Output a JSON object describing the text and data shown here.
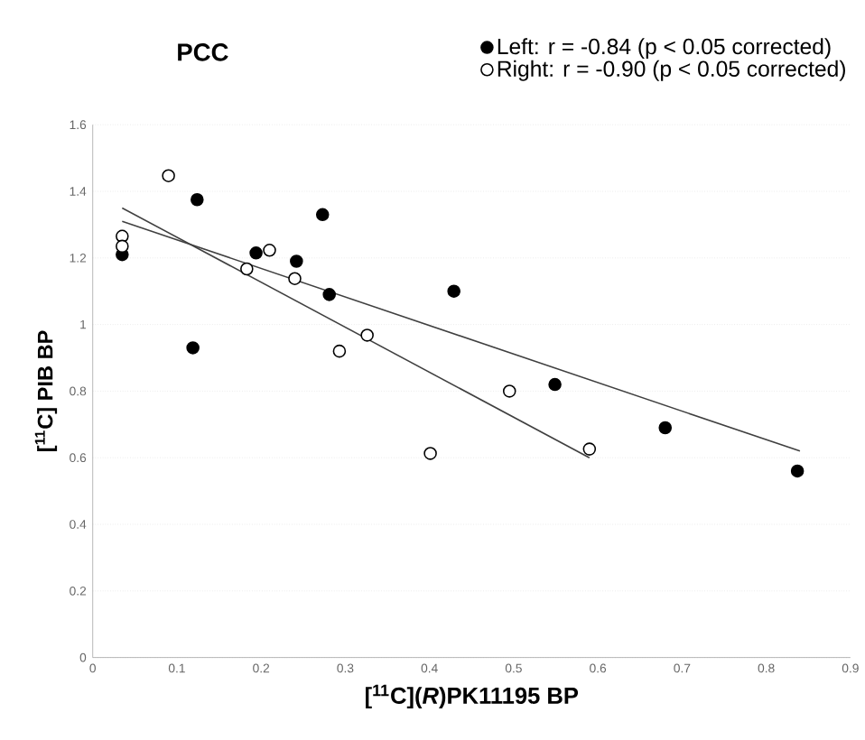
{
  "chart_data": {
    "type": "scatter",
    "title": "PCC",
    "xlabel": "[$^{11}$C](*R*)PK11195 BP",
    "ylabel": "[$^{11}$C] PIB BP",
    "xlim": [
      0,
      0.9
    ],
    "ylim": [
      0,
      1.6
    ],
    "xticks": [
      0,
      0.1,
      0.2,
      0.3,
      0.4,
      0.5,
      0.6,
      0.7,
      0.8,
      0.9
    ],
    "yticks": [
      0,
      0.2,
      0.4,
      0.6,
      0.8,
      1,
      1.2,
      1.4,
      1.6
    ],
    "grid": "y",
    "legend": "top right",
    "series": [
      {
        "name": "Left:   r = -0.84 (p < 0.05 corrected)",
        "marker": "circle",
        "color": "#000000",
        "x": [
          0.035,
          0.124,
          0.194,
          0.242,
          0.273,
          0.281,
          0.119,
          0.429,
          0.549,
          0.68,
          0.837
        ],
        "values": [
          1.21,
          1.375,
          1.215,
          1.19,
          1.33,
          1.09,
          0.93,
          1.1,
          0.82,
          0.69,
          0.56
        ]
      },
      {
        "name": "Right: r = -0.90 (p < 0.05 corrected)",
        "marker": "circle",
        "color": "#ffffff",
        "x": [
          0.035,
          0.035,
          0.09,
          0.21,
          0.183,
          0.24,
          0.326,
          0.293,
          0.401,
          0.495,
          0.59
        ],
        "values": [
          1.265,
          1.235,
          1.447,
          1.223,
          1.167,
          1.138,
          0.968,
          0.92,
          0.613,
          0.8,
          0.626
        ]
      },
      {
        "type": "line",
        "marker": "none",
        "color": "#404040",
        "x": [
          0.035,
          0.84
        ],
        "values": [
          1.31,
          0.62
        ]
      },
      {
        "type": "line",
        "marker": "none",
        "color": "#404040",
        "x": [
          0.035,
          0.59
        ],
        "values": [
          1.35,
          0.6
        ]
      }
    ]
  }
}
